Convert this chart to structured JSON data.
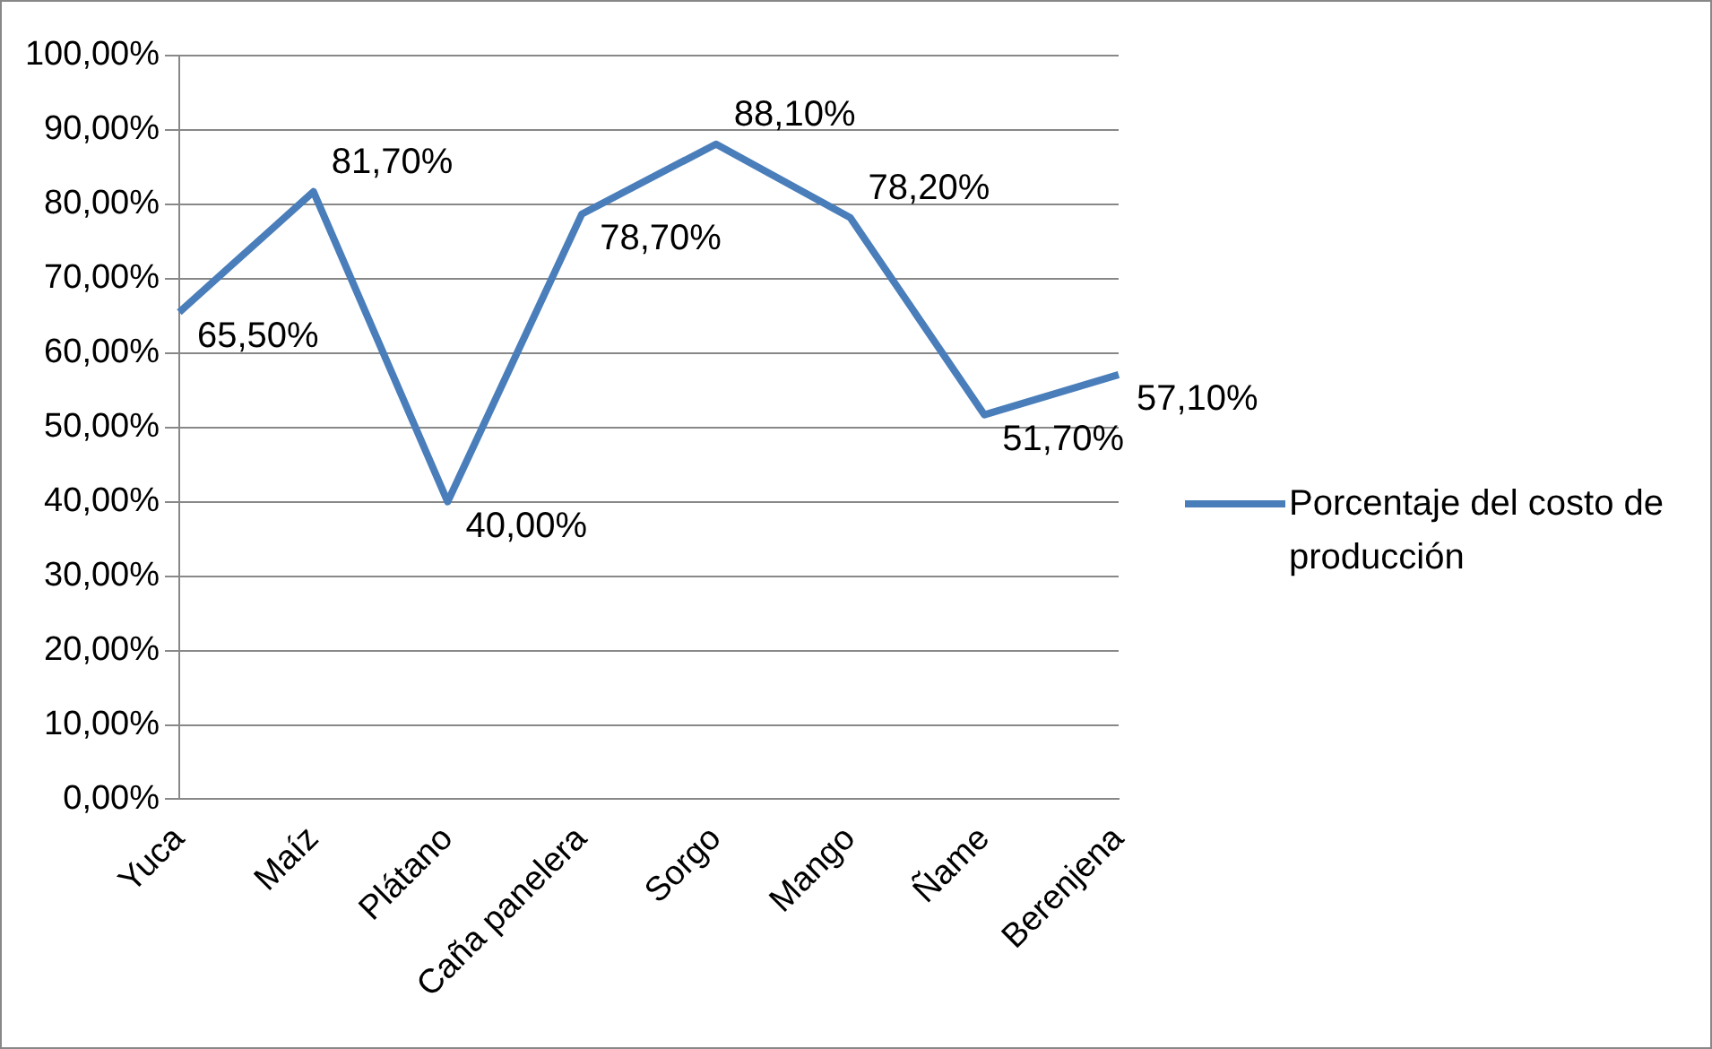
{
  "chart_data": {
    "type": "line",
    "categories": [
      "Yuca",
      "Maíz",
      "Plátano",
      "Caña panelera",
      "Sorgo",
      "Mango",
      "Ñame",
      "Berenjena"
    ],
    "series": [
      {
        "name": "Porcentaje del costo de producción",
        "color": "#4a7ebb",
        "values": [
          65.5,
          81.7,
          40.0,
          78.7,
          88.1,
          78.2,
          51.7,
          57.1
        ],
        "value_labels": [
          "65,50%",
          "81,70%",
          "40,00%",
          "78,70%",
          "88,10%",
          "78,20%",
          "51,70%",
          "57,10%"
        ]
      }
    ],
    "ylim": [
      0,
      100
    ],
    "yticks": [
      {
        "value": 0,
        "label": "0,00%"
      },
      {
        "value": 10,
        "label": "10,00%"
      },
      {
        "value": 20,
        "label": "20,00%"
      },
      {
        "value": 30,
        "label": "30,00%"
      },
      {
        "value": 40,
        "label": "40,00%"
      },
      {
        "value": 50,
        "label": "50,00%"
      },
      {
        "value": 60,
        "label": "60,00%"
      },
      {
        "value": 70,
        "label": "70,00%"
      },
      {
        "value": 80,
        "label": "80,00%"
      },
      {
        "value": 90,
        "label": "90,00%"
      },
      {
        "value": 100,
        "label": "100,00%"
      }
    ],
    "grid": "y",
    "legend": "right",
    "marker": "none",
    "line_style": "solid"
  }
}
